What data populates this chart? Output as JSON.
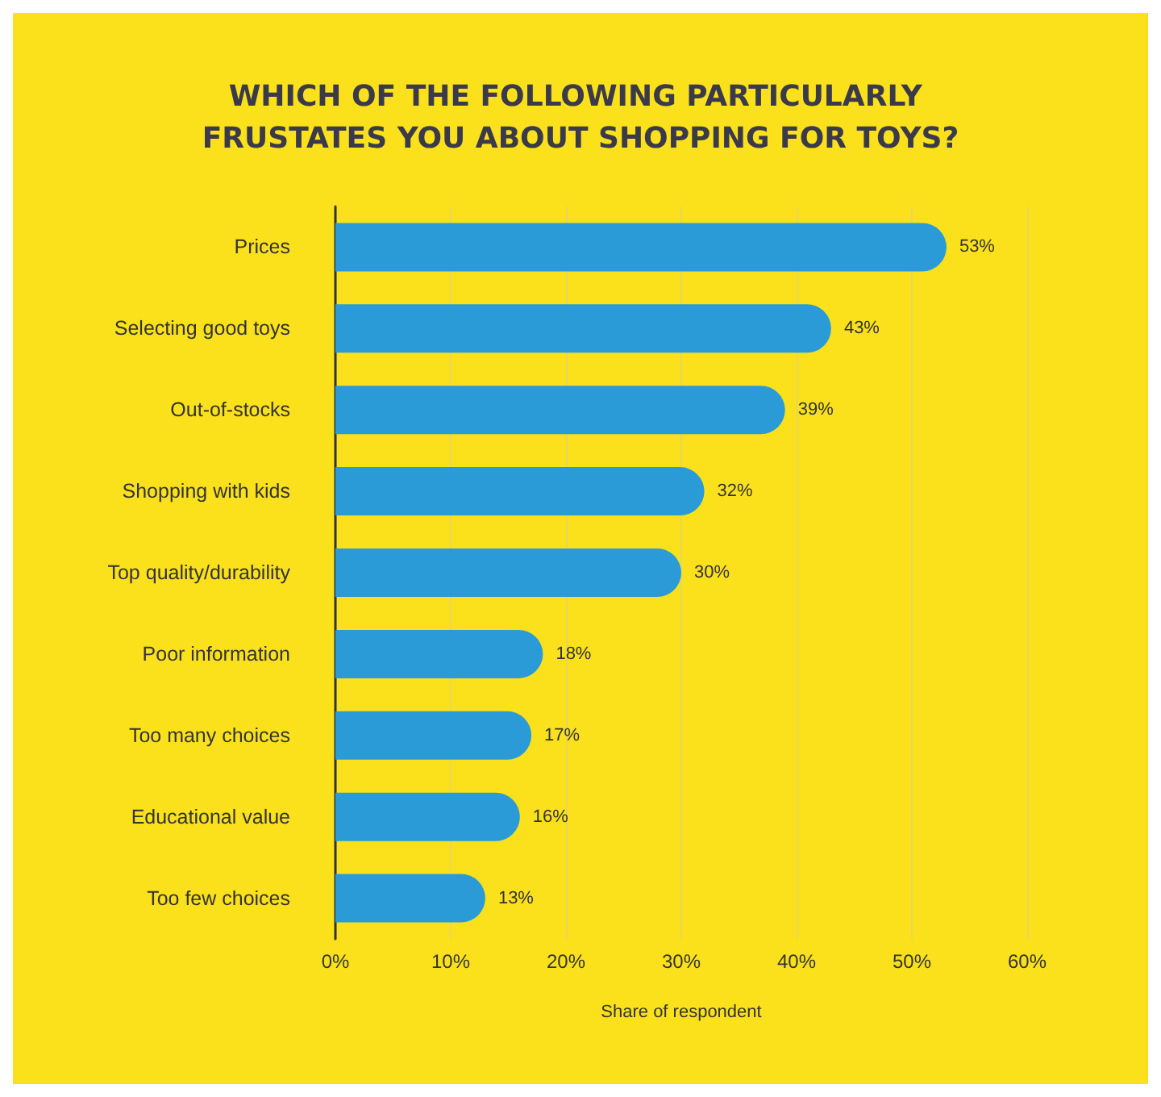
{
  "chart_data": {
    "type": "bar",
    "orientation": "horizontal",
    "title": "WHICH OF THE FOLLOWING PARTICULARLY FRUSTATES YOU ABOUT SHOPPING FOR TOYS?",
    "xlabel": "Share of respondent",
    "categories": [
      "Prices",
      "Selecting good toys",
      "Out-of-stocks",
      "Shopping with kids",
      "Top quality/durability",
      "Poor information",
      "Too many choices",
      "Educational value",
      "Too few choices"
    ],
    "values": [
      53,
      43,
      39,
      32,
      30,
      18,
      17,
      16,
      13
    ],
    "value_labels": [
      "53%",
      "43%",
      "39%",
      "32%",
      "30%",
      "18%",
      "17%",
      "16%",
      "13%"
    ],
    "color": "#2a9bd7",
    "xlim": [
      0,
      60
    ],
    "xticks": [
      {
        "value": 0,
        "label": "0%"
      },
      {
        "value": 10,
        "label": "10%"
      },
      {
        "value": 20,
        "label": "20%"
      },
      {
        "value": 30,
        "label": "30%"
      },
      {
        "value": 40,
        "label": "40%"
      },
      {
        "value": 50,
        "label": "50%"
      },
      {
        "value": 60,
        "label": "60%"
      }
    ],
    "grid": "x"
  }
}
